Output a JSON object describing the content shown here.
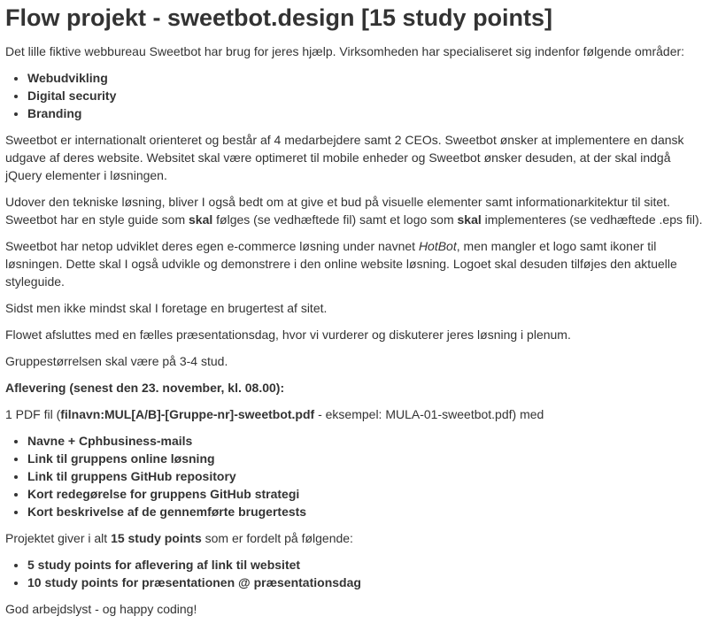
{
  "title": "Flow projekt - sweetbot.design [15 study points]",
  "intro": "Det lille fiktive webbureau Sweetbot har brug for jeres hjælp. Virksomheden har specialiseret sig indenfor følgende områder:",
  "areas": [
    "Webudvikling",
    "Digital security",
    "Branding"
  ],
  "p_international": "Sweetbot er internationalt orienteret og består af 4 medarbejdere samt 2 CEOs. Sweetbot ønsker at implementere en dansk udgave af deres website. Websitet skal være optimeret til mobile enheder og Sweetbot ønsker desuden, at der skal indgå jQuery elementer i løsningen.",
  "p_udover": {
    "a": "Udover den tekniske løsning, bliver I også bedt om at give et bud på visuelle elementer samt informationarkitektur til sitet. Sweetbot har en style guide som ",
    "b1": "skal",
    "c": " følges (se vedhæftede fil) samt et logo som ",
    "b2": "skal",
    "d": " implementeres (se vedhæftede .eps fil)."
  },
  "p_hotbot": {
    "a": "Sweetbot har netop udviklet deres egen e-commerce løsning under navnet ",
    "em": "HotBot",
    "b": ", men mangler et logo samt ikoner til løsningen. Dette skal I også udvikle og demonstrere i den online website løsning. Logoet skal desuden tilføjes den aktuelle styleguide."
  },
  "p_brugertest": "Sidst men ikke mindst skal I foretage en brugertest af sitet.",
  "p_flowet": "Flowet afsluttes med en fælles præsentationsdag, hvor vi vurderer og diskuterer jeres løsning i plenum.",
  "p_gruppe": "Gruppestørrelsen skal være på 3-4 stud.",
  "aflevering_heading": "Aflevering (senest den 23. november, kl. 08.00):",
  "p_pdf": {
    "a": "1 PDF fil (",
    "b": "filnavn:MUL[A/B]-[Gruppe-nr]-sweetbot.pdf",
    "c": " - eksempel: MULA-01-sweetbot.pdf) med"
  },
  "deliverables": [
    "Navne + Cphbusiness-mails",
    "Link til gruppens online løsning",
    "Link til gruppens GitHub repository",
    "Kort redegørelse for gruppens GitHub strategi",
    "Kort beskrivelse af de gennemførte brugertests"
  ],
  "p_points": {
    "a": "Projektet giver i alt ",
    "b": "15 study points",
    "c": " som er fordelt på følgende:"
  },
  "points": [
    "5 study points for aflevering af link til websitet",
    "10 study points for præsentationen @ præsentationsdag"
  ],
  "closing": "God arbejdslyst - og happy coding!"
}
